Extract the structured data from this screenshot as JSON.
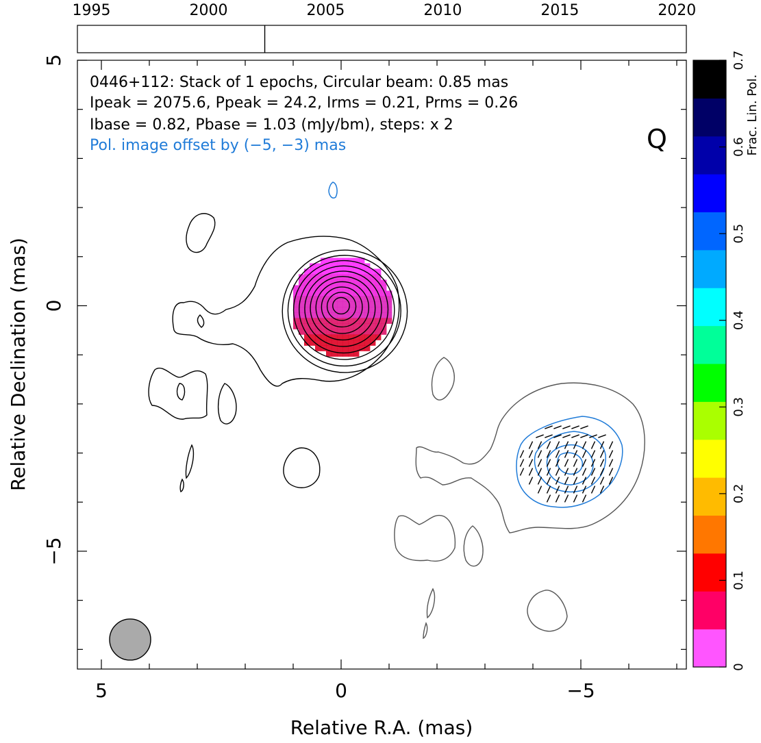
{
  "chart_data": {
    "type": "contour",
    "timeline": {
      "years": [
        "1995",
        "2000",
        "2005",
        "2010",
        "2015",
        "2020"
      ],
      "year_values": [
        1995,
        2000,
        2005,
        2010,
        2015,
        2020
      ],
      "range": [
        1994.4,
        2020.4
      ],
      "epochs": [
        2002.4
      ]
    },
    "annotations": {
      "line1": "0446+112: Stack of 1 epochs, Circular beam: 0.85 mas",
      "line2": "Ipeak = 2075.6, Ppeak = 24.2, Irms = 0.21, Prms = 0.26",
      "line3": "Ibase = 0.82, Pbase = 1.03 (mJy/bm), steps: x 2",
      "offset_note": "Pol. image offset by (−5, −3) mas",
      "stokes_label": "Q"
    },
    "axes": {
      "xlabel": "Relative R.A. (mas)",
      "ylabel": "Relative Declination (mas)",
      "xlim": [
        5.5,
        -7.2
      ],
      "ylim": [
        -7.4,
        5.0
      ],
      "xticks": [
        5,
        0,
        -5
      ],
      "yticks": [
        5,
        0,
        -5
      ],
      "xtick_labels": [
        "5",
        "0",
        "−5"
      ],
      "ytick_labels": [
        "5",
        "0",
        "−5"
      ]
    },
    "beam_fwhm_mas": 0.85,
    "beam_position_mas": [
      4.4,
      -6.8
    ],
    "total_intensity_contours": {
      "color": "#000000",
      "core_center_mas": [
        0,
        0
      ],
      "core_levels": 10
    },
    "polarization": {
      "offset_mas": [
        -5,
        -3
      ],
      "contour_color": "#1f7bd8",
      "offset_contour_color": "#555555",
      "fractional_colors": [
        "#ff2aff",
        "#ee22dd",
        "#dd22bb",
        "#dd1166",
        "#dd0022"
      ]
    },
    "colorbar": {
      "label": "Frac. Lin. Pol.",
      "range": [
        0,
        0.7
      ],
      "ticks": [
        0,
        0.1,
        0.2,
        0.3,
        0.4,
        0.5,
        0.6,
        0.7
      ],
      "tick_labels": [
        "0",
        "0.1",
        "0.2",
        "0.3",
        "0.4",
        "0.5",
        "0.6",
        "0.7"
      ],
      "colors": [
        "#ff55ff",
        "#ff0066",
        "#ff0000",
        "#ff7700",
        "#ffbb00",
        "#ffff00",
        "#aaff00",
        "#00ff00",
        "#00ff99",
        "#00ffff",
        "#00aaff",
        "#0066ff",
        "#0000ff",
        "#0000aa",
        "#000066",
        "#000000"
      ]
    }
  }
}
